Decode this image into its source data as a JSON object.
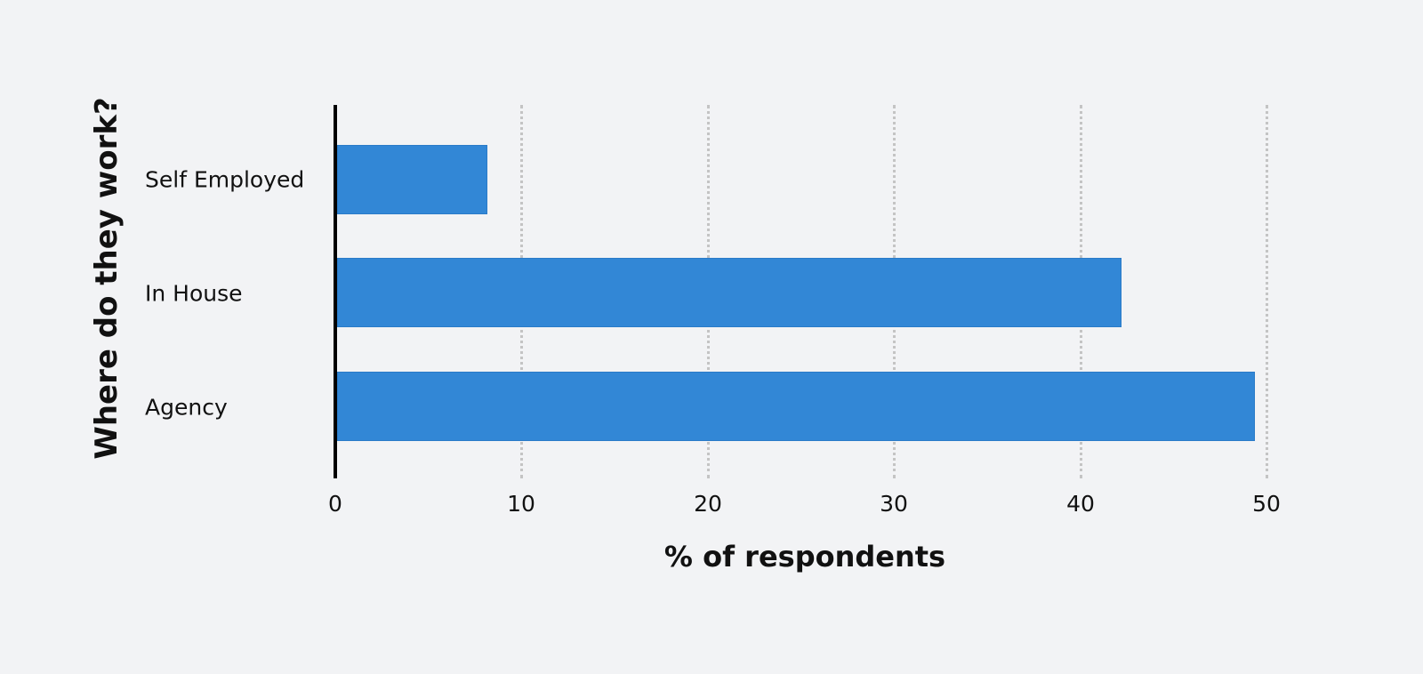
{
  "chart_data": {
    "type": "bar",
    "orientation": "horizontal",
    "title": "",
    "xlabel": "% of respondents",
    "ylabel": "Where do they work?",
    "categories": [
      "Self Employed",
      "In House",
      "Agency"
    ],
    "values": [
      8.1,
      42.2,
      49.4
    ],
    "xlim": [
      0,
      50
    ],
    "xticks": [
      "0",
      "10",
      "20",
      "30",
      "40",
      "50"
    ],
    "grid": "vertical dotted",
    "legend": "none",
    "bar_color": "#3287d6"
  }
}
